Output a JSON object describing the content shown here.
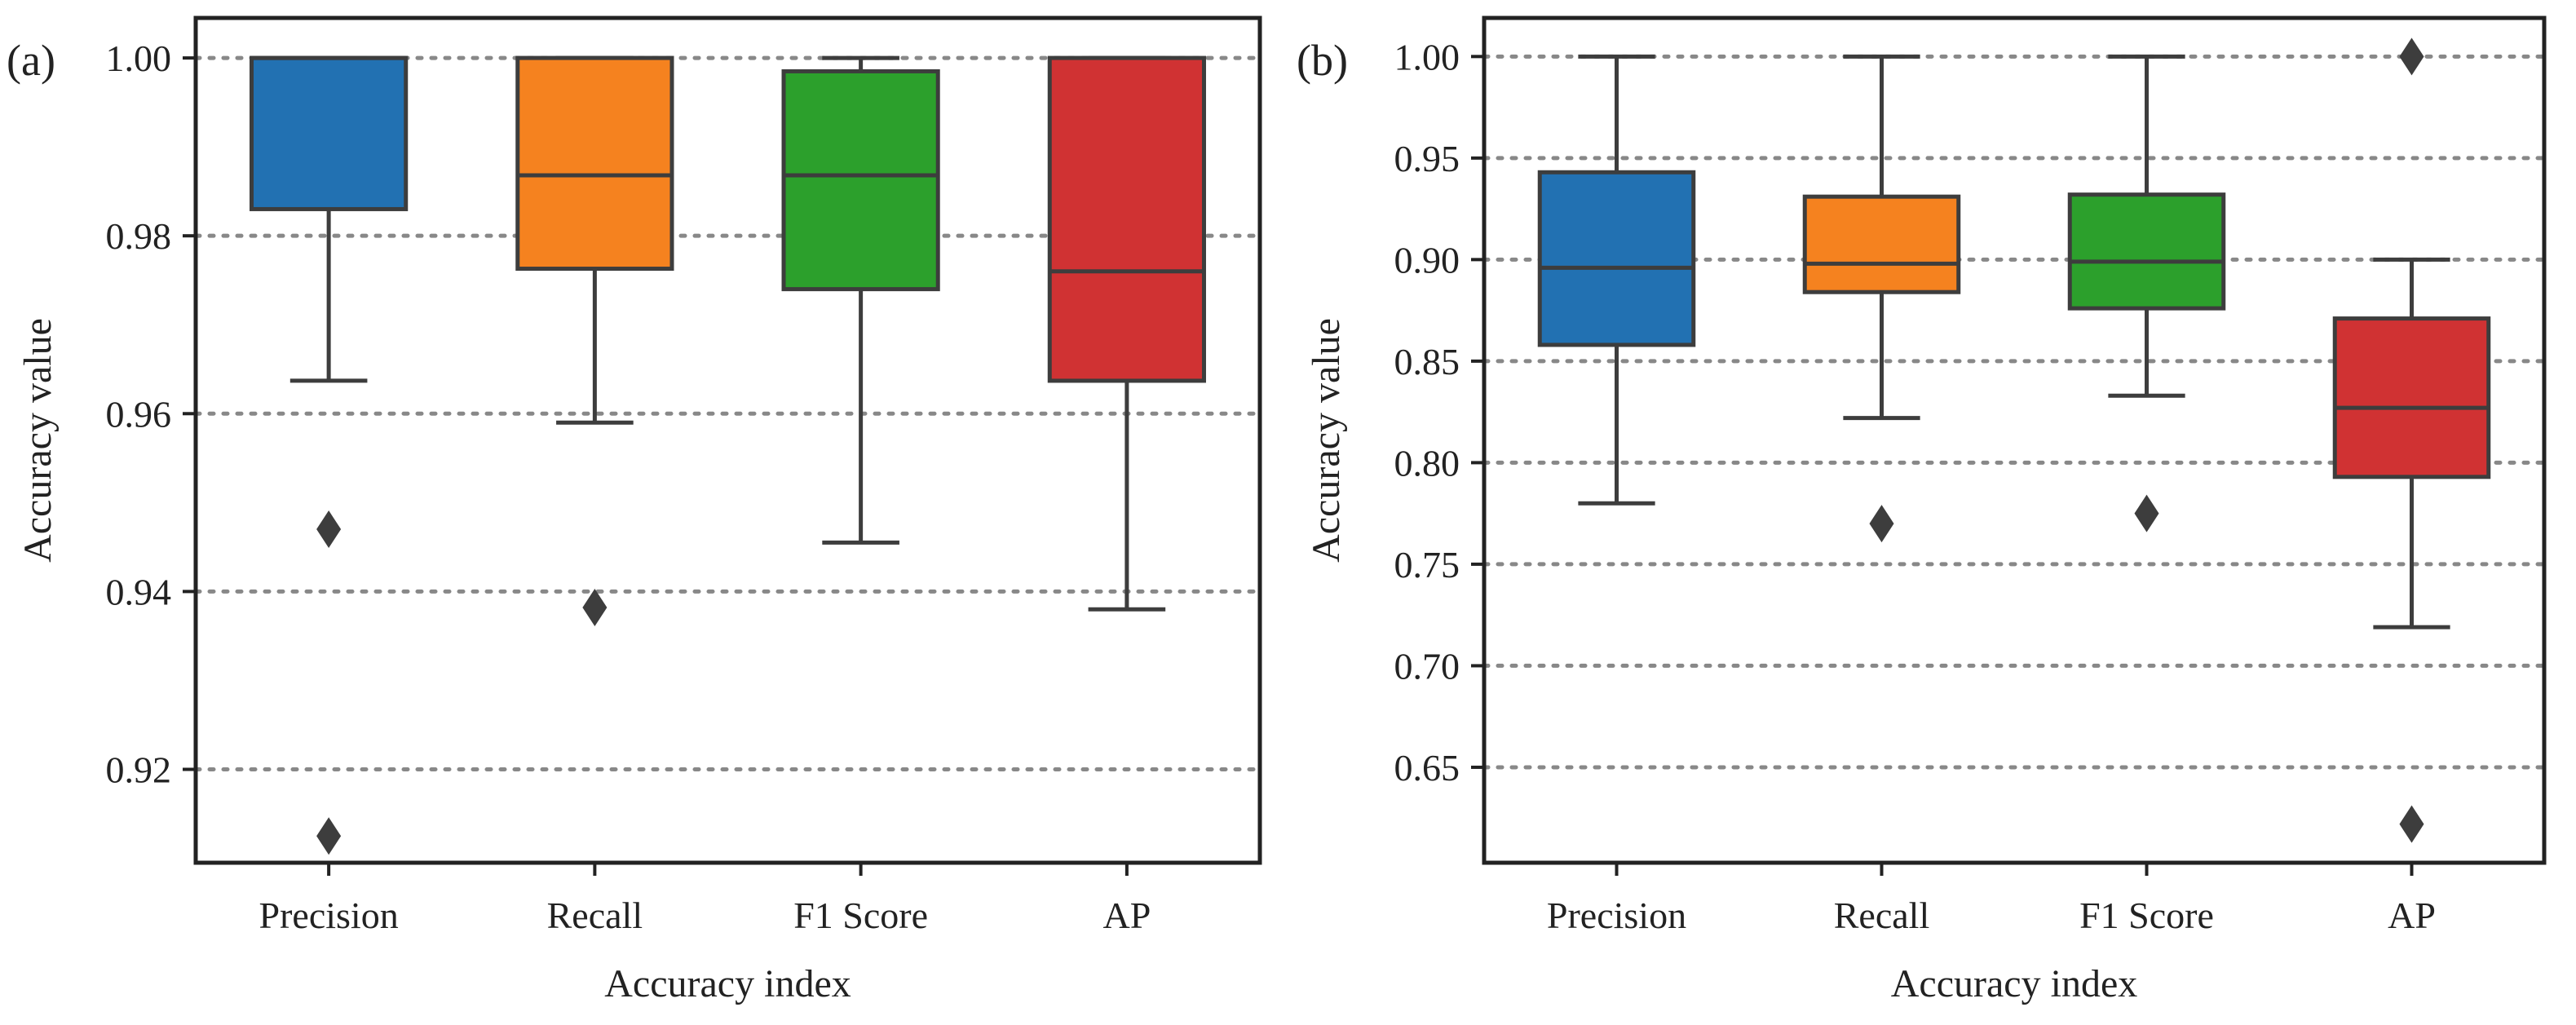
{
  "chart_data": [
    {
      "type": "box",
      "panel_label": "(a)",
      "xlabel": "Accuracy index",
      "ylabel": "Accuracy value",
      "categories": [
        "Precision",
        "Recall",
        "F1 Score",
        "AP"
      ],
      "ylim": [
        0.9095,
        1.0045
      ],
      "yticks": [
        0.92,
        0.94,
        0.96,
        0.98,
        1.0
      ],
      "ytick_labels": [
        "0.92",
        "0.94",
        "0.96",
        "0.98",
        "1.00"
      ],
      "grid": "horizontal dotted",
      "boxes": [
        {
          "name": "Precision",
          "whisker_low": 0.9637,
          "q1": 0.983,
          "median": 1.0,
          "q3": 1.0,
          "whisker_high": 1.0,
          "outliers": [
            0.947,
            0.9125
          ],
          "color": "#2271b2"
        },
        {
          "name": "Recall",
          "whisker_low": 0.959,
          "q1": 0.9763,
          "median": 0.9868,
          "q3": 1.0,
          "whisker_high": 1.0,
          "outliers": [
            0.9382
          ],
          "color": "#f5821f"
        },
        {
          "name": "F1 Score",
          "whisker_low": 0.9455,
          "q1": 0.974,
          "median": 0.9868,
          "q3": 0.9985,
          "whisker_high": 1.0,
          "outliers": [],
          "color": "#2ca02c"
        },
        {
          "name": "AP",
          "whisker_low": 0.938,
          "q1": 0.9637,
          "median": 0.976,
          "q3": 1.0,
          "whisker_high": 1.0,
          "outliers": [],
          "color": "#d03233"
        }
      ]
    },
    {
      "type": "box",
      "panel_label": "(b)",
      "xlabel": "Accuracy index",
      "ylabel": "Accuracy value",
      "categories": [
        "Precision",
        "Recall",
        "F1 Score",
        "AP"
      ],
      "ylim": [
        0.603,
        1.019
      ],
      "yticks": [
        0.65,
        0.7,
        0.75,
        0.8,
        0.85,
        0.9,
        0.95,
        1.0
      ],
      "ytick_labels": [
        "0.65",
        "0.70",
        "0.75",
        "0.80",
        "0.85",
        "0.90",
        "0.95",
        "1.00"
      ],
      "grid": "horizontal dotted",
      "boxes": [
        {
          "name": "Precision",
          "whisker_low": 0.78,
          "q1": 0.858,
          "median": 0.896,
          "q3": 0.943,
          "whisker_high": 1.0,
          "outliers": [],
          "color": "#2271b2"
        },
        {
          "name": "Recall",
          "whisker_low": 0.822,
          "q1": 0.884,
          "median": 0.898,
          "q3": 0.931,
          "whisker_high": 1.0,
          "outliers": [
            0.77
          ],
          "color": "#f5821f"
        },
        {
          "name": "F1 Score",
          "whisker_low": 0.833,
          "q1": 0.876,
          "median": 0.899,
          "q3": 0.932,
          "whisker_high": 1.0,
          "outliers": [
            0.775
          ],
          "color": "#2ca02c"
        },
        {
          "name": "AP",
          "whisker_low": 0.719,
          "q1": 0.793,
          "median": 0.827,
          "q3": 0.871,
          "whisker_high": 0.9,
          "outliers": [
            1.0,
            0.622
          ],
          "color": "#d03233"
        }
      ]
    }
  ]
}
